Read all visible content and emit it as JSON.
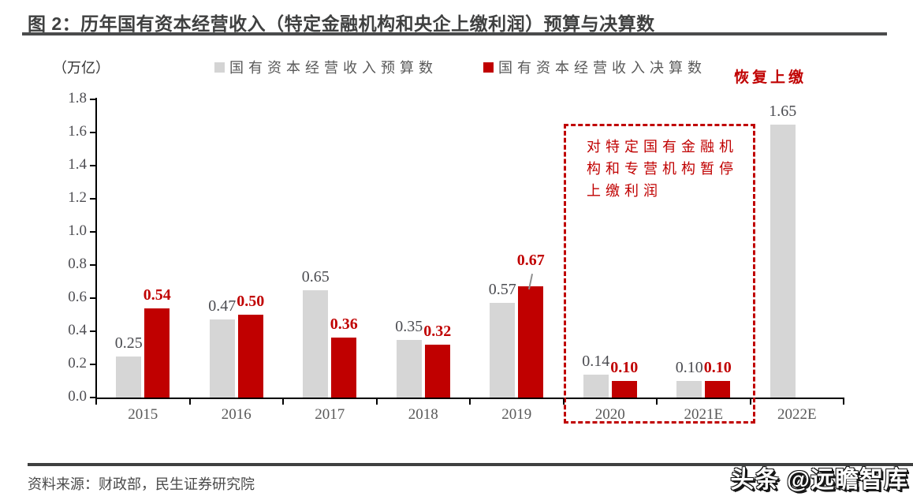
{
  "figure": {
    "title": "图 2：历年国有资本经营收入（特定金融机构和央企上缴利润）预算与决算数",
    "unit_label": "（万亿）",
    "resume_label": "恢复上缴",
    "annotation": {
      "lines": [
        "对特定国有金融机",
        "构和专营机构暂停",
        "上缴利润"
      ]
    },
    "source": "资料来源：财政部，民生证券研究院",
    "watermark": "头条 @远瞻智库"
  },
  "colors": {
    "budget_bar": "#d6d6d6",
    "actual_bar": "#c00000",
    "accent_red": "#c00000",
    "title_gray": "#3f4040",
    "axis_black": "#000000",
    "label_gray": "#4a4b50"
  },
  "chart_data": {
    "type": "bar",
    "title": "历年国有资本经营收入（特定金融机构和央企上缴利润）预算与决算数",
    "unit": "万亿",
    "categories": [
      "2015",
      "2016",
      "2017",
      "2018",
      "2019",
      "2020",
      "2021E",
      "2022E"
    ],
    "series": [
      {
        "name": "国有资本经营收入预算数",
        "color": "#d6d6d6",
        "values": [
          0.25,
          0.47,
          0.65,
          0.35,
          0.57,
          0.14,
          0.1,
          1.65
        ]
      },
      {
        "name": "国有资本经营收入决算数",
        "color": "#c00000",
        "values": [
          0.54,
          0.5,
          0.36,
          0.32,
          0.67,
          0.1,
          0.1,
          null
        ]
      }
    ],
    "ylim": [
      0,
      1.8
    ],
    "ytick_step": 0.2,
    "grid": false,
    "legend_position": "top",
    "annotations": [
      "对特定国有金融机构和专营机构暂停上缴利润",
      "恢复上缴"
    ]
  }
}
